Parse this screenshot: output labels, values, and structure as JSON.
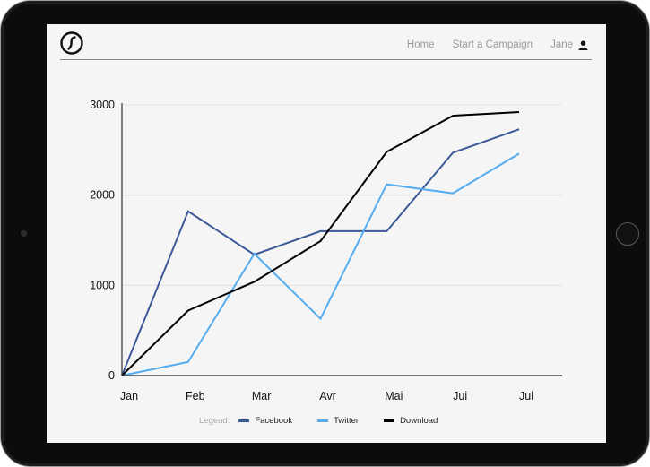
{
  "nav": {
    "home": "Home",
    "campaign": "Start a Campaign",
    "user": "Jane"
  },
  "icons": {
    "logo": "brand-logo-icon",
    "user": "user-icon"
  },
  "legend": {
    "label": "Legend:"
  },
  "chart_data": {
    "type": "line",
    "categories": [
      "Jan",
      "Feb",
      "Mar",
      "Avr",
      "Mai",
      "Jui",
      "Jul"
    ],
    "ylim": [
      0,
      3000
    ],
    "yticks": [
      0,
      1000,
      2000,
      3000
    ],
    "grid": true,
    "legend_position": "bottom",
    "series": [
      {
        "name": "Facebook",
        "color": "#3d5a98",
        "values": [
          0,
          1820,
          1340,
          1600,
          1600,
          2470,
          2730
        ]
      },
      {
        "name": "Twitter",
        "color": "#55acee",
        "values": [
          0,
          150,
          1350,
          630,
          2120,
          2020,
          2460
        ]
      },
      {
        "name": "Download",
        "color": "#000000",
        "values": [
          0,
          720,
          1040,
          1490,
          2480,
          2880,
          2920
        ]
      }
    ]
  }
}
